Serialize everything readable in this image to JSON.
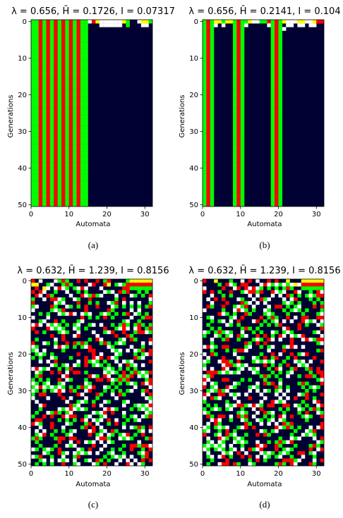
{
  "colors": {
    "background": "#000033",
    "state_1": "#ff0000",
    "state_2": "#00ff00",
    "state_3": "#ffffff",
    "state_4": "#ffff00"
  },
  "panels": [
    {
      "id": "a",
      "caption": "(a)",
      "title": "λ = 0.656, H̄ = 0.1726, I = 0.07317",
      "xlabel": "Automata",
      "ylabel": "Generations"
    },
    {
      "id": "b",
      "caption": "(b)",
      "title": "λ = 0.656, H̄ = 0.2141, I = 0.104",
      "xlabel": "Automata",
      "ylabel": "Generations"
    },
    {
      "id": "c",
      "caption": "(c)",
      "title": "λ = 0.632, H̄ = 1.239, I = 0.8156",
      "xlabel": "Automata",
      "ylabel": "Generations"
    },
    {
      "id": "d",
      "caption": "(d)",
      "title": "λ = 0.632, H̄ = 1.239, I = 0.8156",
      "xlabel": "Automata",
      "ylabel": "Generations"
    }
  ],
  "chart_data": [
    {
      "type": "heatmap",
      "panel": "a",
      "title": "λ = 0.656, H̄ = 0.1726, I = 0.07317",
      "xlabel": "Automata",
      "ylabel": "Generations",
      "xlim": [
        0,
        32
      ],
      "ylim": [
        50,
        0
      ],
      "xticks": [
        0,
        10,
        20,
        30
      ],
      "yticks": [
        0,
        10,
        20,
        30,
        40,
        50
      ],
      "pattern": "stable-stripes",
      "stripe_columns": [
        {
          "col": 0,
          "state": 2
        },
        {
          "col": 1,
          "state": 2
        },
        {
          "col": 2,
          "state": 1
        },
        {
          "col": 3,
          "state": 2
        },
        {
          "col": 4,
          "state": 1
        },
        {
          "col": 5,
          "state": 2
        },
        {
          "col": 6,
          "state": 1
        },
        {
          "col": 7,
          "state": 2
        },
        {
          "col": 8,
          "state": 1
        },
        {
          "col": 9,
          "state": 2
        },
        {
          "col": 10,
          "state": 1
        },
        {
          "col": 11,
          "state": 2
        },
        {
          "col": 12,
          "state": 1
        },
        {
          "col": 13,
          "state": 2
        },
        {
          "col": 14,
          "state": 2
        }
      ],
      "top_rows": [
        [
          2,
          2,
          1,
          2,
          1,
          2,
          1,
          2,
          1,
          2,
          1,
          2,
          1,
          2,
          2,
          3,
          1,
          4,
          3,
          3,
          3,
          3,
          3,
          3,
          4,
          2,
          0,
          0,
          3,
          4,
          4,
          2
        ],
        [
          2,
          2,
          1,
          2,
          1,
          2,
          1,
          2,
          1,
          2,
          1,
          2,
          1,
          2,
          2,
          0,
          0,
          0,
          3,
          3,
          3,
          3,
          3,
          3,
          0,
          2,
          0,
          0,
          0,
          3,
          3,
          0
        ],
        [
          2,
          2,
          1,
          2,
          1,
          2,
          1,
          2,
          1,
          2,
          1,
          2,
          1,
          2,
          2,
          0,
          0,
          0,
          0,
          0,
          0,
          0,
          0,
          0,
          0,
          0,
          0,
          0,
          0,
          0,
          0,
          0
        ]
      ]
    },
    {
      "type": "heatmap",
      "panel": "b",
      "title": "λ = 0.656, H̄ = 0.2141, I = 0.104",
      "xlabel": "Automata",
      "ylabel": "Generations",
      "xlim": [
        0,
        32
      ],
      "ylim": [
        50,
        0
      ],
      "xticks": [
        0,
        10,
        20,
        30
      ],
      "yticks": [
        0,
        10,
        20,
        30,
        40,
        50
      ],
      "pattern": "stable-stripes",
      "stripe_columns": [
        {
          "col": 0,
          "state": 2
        },
        {
          "col": 1,
          "state": 1
        },
        {
          "col": 2,
          "state": 2
        },
        {
          "col": 8,
          "state": 2
        },
        {
          "col": 9,
          "state": 1
        },
        {
          "col": 10,
          "state": 2
        },
        {
          "col": 18,
          "state": 2
        },
        {
          "col": 19,
          "state": 1
        },
        {
          "col": 20,
          "state": 2
        }
      ],
      "top_rows": [
        [
          2,
          1,
          2,
          4,
          4,
          2,
          4,
          4,
          2,
          1,
          2,
          2,
          4,
          3,
          3,
          2,
          2,
          1,
          2,
          1,
          2,
          4,
          3,
          3,
          3,
          4,
          4,
          3,
          3,
          4,
          1,
          1
        ],
        [
          2,
          1,
          2,
          3,
          0,
          3,
          0,
          0,
          2,
          1,
          2,
          3,
          0,
          0,
          0,
          0,
          0,
          3,
          2,
          1,
          2,
          0,
          3,
          3,
          0,
          3,
          3,
          0,
          3,
          3,
          0,
          0
        ],
        [
          2,
          1,
          2,
          0,
          0,
          0,
          0,
          0,
          2,
          1,
          2,
          0,
          0,
          0,
          0,
          0,
          0,
          0,
          2,
          1,
          2,
          3,
          0,
          0,
          0,
          0,
          0,
          0,
          0,
          0,
          0,
          0
        ]
      ]
    },
    {
      "type": "heatmap",
      "panel": "c",
      "title": "λ = 0.632, H̄ = 1.239, I = 0.8156",
      "xlabel": "Automata",
      "ylabel": "Generations",
      "xlim": [
        0,
        32
      ],
      "ylim": [
        50,
        0
      ],
      "xticks": [
        0,
        10,
        20,
        30
      ],
      "yticks": [
        0,
        10,
        20,
        30,
        40,
        50
      ],
      "pattern": "dense-chaotic",
      "states": [
        0,
        1,
        2,
        3,
        4
      ]
    },
    {
      "type": "heatmap",
      "panel": "d",
      "title": "λ = 0.632, H̄ = 1.239, I = 0.8156",
      "xlabel": "Automata",
      "ylabel": "Generations",
      "xlim": [
        0,
        32
      ],
      "ylim": [
        50,
        0
      ],
      "xticks": [
        0,
        10,
        20,
        30
      ],
      "yticks": [
        0,
        10,
        20,
        30,
        40,
        50
      ],
      "pattern": "dense-chaotic",
      "states": [
        0,
        1,
        2,
        3,
        4
      ]
    }
  ]
}
